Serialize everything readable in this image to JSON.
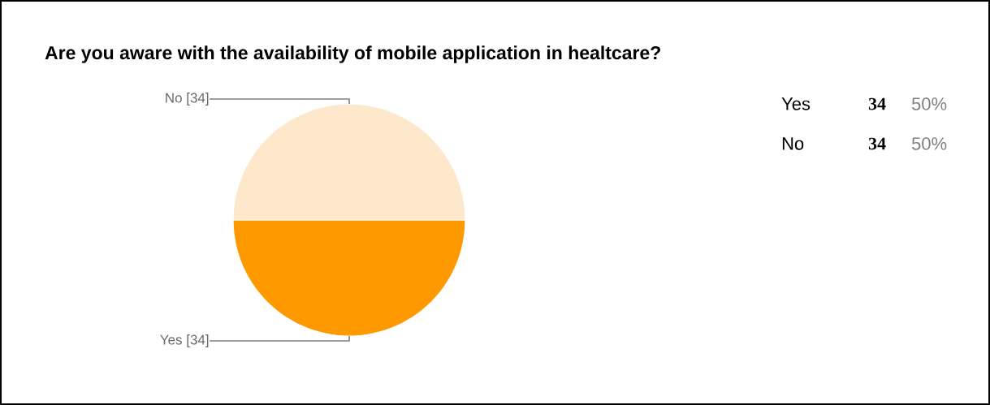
{
  "chart_data": {
    "type": "pie",
    "title": "Are you aware with the availability of mobile application in healtcare?",
    "categories": [
      "Yes",
      "No"
    ],
    "values": [
      34,
      34
    ],
    "colors": [
      "#ff9900",
      "#fee8cb"
    ],
    "value_labels": [
      "[34]",
      "[34]"
    ],
    "annotations": [
      "34",
      "50%",
      "34",
      "50%"
    ]
  }
}
